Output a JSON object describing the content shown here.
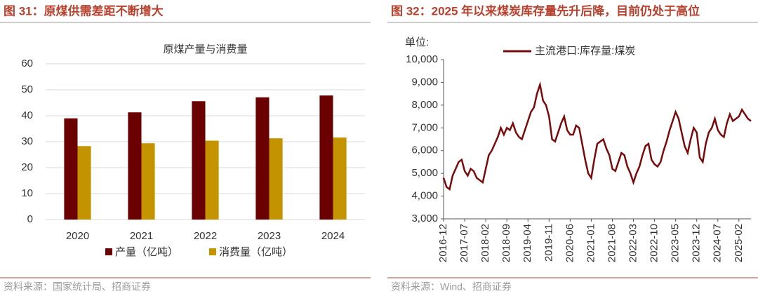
{
  "chart_data": [
    {
      "type": "bar",
      "figure_title": "图 31：原煤供需差距不断增大",
      "title": "原煤产量与消费量",
      "categories": [
        "2020",
        "2021",
        "2022",
        "2023",
        "2024"
      ],
      "series": [
        {
          "name": "产量（亿吨）",
          "color": "#6b0000",
          "values": [
            39.0,
            41.3,
            45.6,
            47.1,
            47.8
          ]
        },
        {
          "name": "消费量（亿吨）",
          "color": "#c39300",
          "values": [
            28.3,
            29.4,
            30.4,
            31.3,
            31.6
          ]
        }
      ],
      "ylim": [
        0,
        60
      ],
      "yticks": [
        0,
        10,
        20,
        30,
        40,
        50,
        60
      ],
      "grid": true,
      "source": "资料来源：国家统计局、招商证券"
    },
    {
      "type": "line",
      "figure_title": "图 32：2025 年以来煤炭库存量先升后降，目前仍处于高位",
      "y_unit": "单位:",
      "x": [
        "2016-12",
        "2017-01",
        "2017-02",
        "2017-03",
        "2017-04",
        "2017-05",
        "2017-06",
        "2017-07",
        "2017-08",
        "2017-09",
        "2017-10",
        "2017-11",
        "2017-12",
        "2018-01",
        "2018-02",
        "2018-03",
        "2018-04",
        "2018-05",
        "2018-06",
        "2018-07",
        "2018-08",
        "2018-09",
        "2018-10",
        "2018-11",
        "2018-12",
        "2019-01",
        "2019-02",
        "2019-03",
        "2019-04",
        "2019-05",
        "2019-06",
        "2019-07",
        "2019-08",
        "2019-09",
        "2019-10",
        "2019-11",
        "2019-12",
        "2020-01",
        "2020-02",
        "2020-03",
        "2020-04",
        "2020-05",
        "2020-06",
        "2020-07",
        "2020-08",
        "2020-09",
        "2020-10",
        "2020-11",
        "2020-12",
        "2021-01",
        "2021-02",
        "2021-03",
        "2021-04",
        "2021-05",
        "2021-06",
        "2021-07",
        "2021-08",
        "2021-09",
        "2021-10",
        "2021-11",
        "2021-12",
        "2022-01",
        "2022-02",
        "2022-03",
        "2022-04",
        "2022-05",
        "2022-06",
        "2022-07",
        "2022-08",
        "2022-09",
        "2022-10",
        "2022-11",
        "2022-12",
        "2023-01",
        "2023-02",
        "2023-03",
        "2023-04",
        "2023-05",
        "2023-06",
        "2023-07",
        "2023-08",
        "2023-09",
        "2023-10",
        "2023-11",
        "2023-12",
        "2024-01",
        "2024-02",
        "2024-03",
        "2024-04",
        "2024-05",
        "2024-06",
        "2024-07",
        "2024-08",
        "2024-09",
        "2024-10",
        "2024-11",
        "2024-12",
        "2025-01",
        "2025-02",
        "2025-03",
        "2025-04",
        "2025-05",
        "2025-06"
      ],
      "series": [
        {
          "name": "主流港口:库存量:煤炭",
          "color": "#7a0a0a",
          "values": [
            4800,
            4400,
            4300,
            4900,
            5200,
            5500,
            5600,
            5100,
            4900,
            5200,
            5100,
            4800,
            4700,
            4600,
            5200,
            5800,
            6000,
            6300,
            6600,
            7000,
            6700,
            7000,
            6900,
            7200,
            6800,
            6600,
            6500,
            6900,
            7300,
            7700,
            7900,
            8500,
            8900,
            8200,
            8000,
            7500,
            6500,
            6400,
            6800,
            7200,
            7500,
            6900,
            6700,
            6700,
            7100,
            7000,
            6300,
            5600,
            5000,
            4800,
            5600,
            6300,
            6400,
            6500,
            6100,
            5800,
            5200,
            5100,
            5500,
            5900,
            5800,
            5300,
            5000,
            4600,
            5000,
            5300,
            5800,
            6200,
            6300,
            5600,
            5400,
            5300,
            5500,
            6000,
            6400,
            6900,
            7300,
            7700,
            7400,
            6800,
            6200,
            5900,
            6500,
            7000,
            6800,
            5700,
            5500,
            6300,
            6800,
            7000,
            7400,
            6900,
            6700,
            6600,
            7200,
            7600,
            7300,
            7400,
            7500,
            7800,
            7600,
            7400,
            7300
          ]
        }
      ],
      "xticks": [
        "2016-12",
        "2017-07",
        "2018-02",
        "2018-09",
        "2019-04",
        "2019-11",
        "2020-06",
        "2021-01",
        "2021-08",
        "2022-03",
        "2022-10",
        "2023-05",
        "2023-12",
        "2024-07",
        "2025-02"
      ],
      "ylim": [
        3000,
        10000
      ],
      "yticks": [
        {
          "value": 3000,
          "label": "3,000"
        },
        {
          "value": 4000,
          "label": "4,000"
        },
        {
          "value": 5000,
          "label": "5,000"
        },
        {
          "value": 6000,
          "label": "6,000"
        },
        {
          "value": 7000,
          "label": "7,000"
        },
        {
          "value": 8000,
          "label": "8,000"
        },
        {
          "value": 9000,
          "label": "9,000"
        },
        {
          "value": 10000,
          "label": "10,000"
        }
      ],
      "grid": false,
      "source": "资料来源：Wind、招商证券"
    }
  ]
}
